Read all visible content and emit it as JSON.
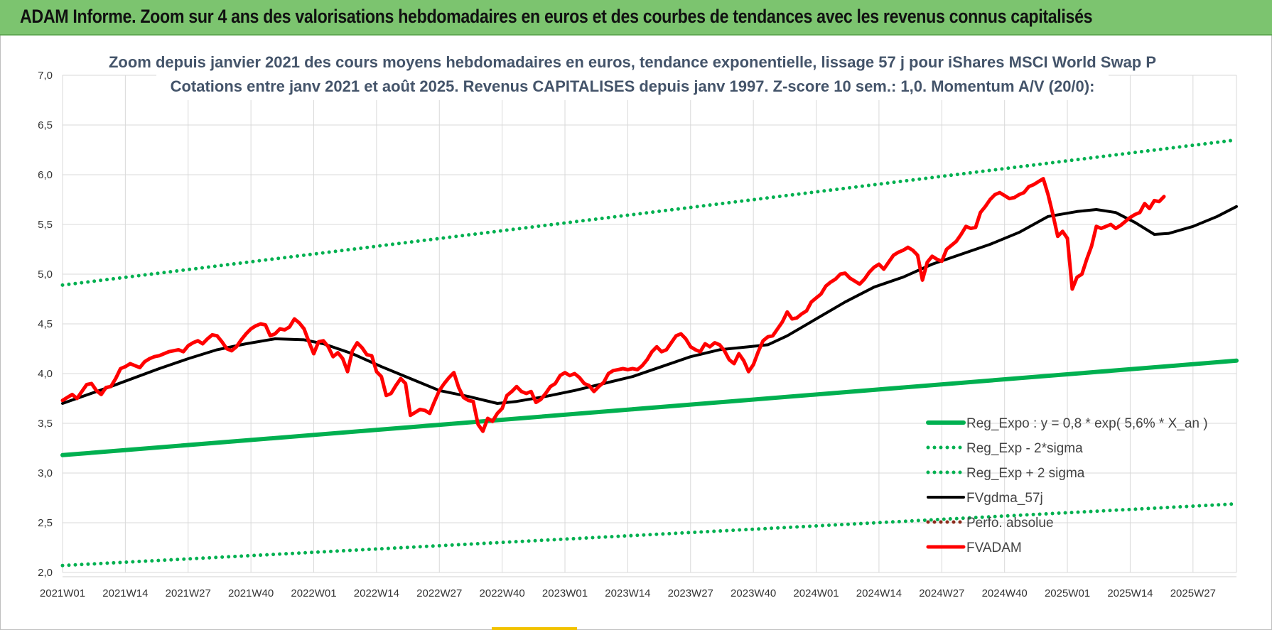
{
  "banner": {
    "title": "ADAM Informe. Zoom sur 4 ans des valorisations hebdomadaires en euros et des courbes de tendances avec les revenus connus capitalisés"
  },
  "colors": {
    "banner_bg": "#7cc46f",
    "reg_expo": "#00b050",
    "fvgdma": "#000000",
    "perfo": "#8b2a1a",
    "fvadam": "#ff0000",
    "title_text": "#44546a",
    "grid": "#d9d9d9"
  },
  "chart_data": {
    "type": "line",
    "title": "Zoom depuis janvier 2021 des cours moyens hebdomadaires en euros, tendance exponentielle, lissage 57 j pour iShares MSCI World Swap P",
    "subtitle": "Cotations entre janv 2021 et août 2025. Revenus CAPITALISES depuis janv 1997. Z-score 10 sem.: 1,0. Momentum A/V (20/0):",
    "ylim": [
      2.0,
      7.0
    ],
    "yticks": [
      "7,0",
      "6,5",
      "6,0",
      "5,5",
      "5,0",
      "4,5",
      "4,0",
      "3,5",
      "3,0",
      "2,5",
      "2,0"
    ],
    "ytick_values": [
      7.0,
      6.5,
      6.0,
      5.5,
      5.0,
      4.5,
      4.0,
      3.5,
      3.0,
      2.5,
      2.0
    ],
    "x_start": "2021W01",
    "x_end": "2025W34",
    "xticks": [
      "2021W01",
      "2021W14",
      "2021W27",
      "2021W40",
      "2022W01",
      "2022W14",
      "2022W27",
      "2022W40",
      "2023W01",
      "2023W14",
      "2023W27",
      "2023W40",
      "2024W01",
      "2024W14",
      "2024W27",
      "2024W40",
      "2025W01",
      "2025W14",
      "2025W27"
    ],
    "xtick_weeks": [
      0,
      13,
      26,
      39,
      52,
      65,
      78,
      91,
      104,
      117,
      130,
      143,
      156,
      169,
      182,
      195,
      208,
      221,
      234
    ],
    "grid": "vertical and horizontal",
    "legend_position": "bottom-right",
    "series": [
      {
        "name": "Reg_Expo : y = 0,8 * exp( 5,6% *  X_an )",
        "style": "solid-thick",
        "color": "#00b050",
        "points": [
          [
            0,
            3.18
          ],
          [
            243,
            4.13
          ]
        ]
      },
      {
        "name": "Reg_Exp - 2*sigma",
        "style": "dotted",
        "color": "#00b050",
        "points": [
          [
            0,
            2.07
          ],
          [
            243,
            2.69
          ]
        ]
      },
      {
        "name": "Reg_Exp + 2 sigma",
        "style": "dotted",
        "color": "#00b050",
        "points": [
          [
            0,
            4.89
          ],
          [
            243,
            6.35
          ]
        ]
      },
      {
        "name": "FVgdma_57j",
        "style": "solid",
        "color": "#000000",
        "points": [
          [
            0,
            3.7
          ],
          [
            10,
            3.87
          ],
          [
            20,
            4.05
          ],
          [
            26,
            4.15
          ],
          [
            32,
            4.24
          ],
          [
            38,
            4.3
          ],
          [
            44,
            4.35
          ],
          [
            50,
            4.34
          ],
          [
            54,
            4.3
          ],
          [
            60,
            4.2
          ],
          [
            66,
            4.07
          ],
          [
            72,
            3.95
          ],
          [
            78,
            3.83
          ],
          [
            84,
            3.77
          ],
          [
            90,
            3.7
          ],
          [
            94,
            3.72
          ],
          [
            100,
            3.77
          ],
          [
            106,
            3.83
          ],
          [
            112,
            3.9
          ],
          [
            118,
            3.97
          ],
          [
            124,
            4.07
          ],
          [
            130,
            4.17
          ],
          [
            136,
            4.24
          ],
          [
            142,
            4.27
          ],
          [
            146,
            4.29
          ],
          [
            150,
            4.38
          ],
          [
            156,
            4.55
          ],
          [
            162,
            4.72
          ],
          [
            168,
            4.87
          ],
          [
            174,
            4.97
          ],
          [
            180,
            5.1
          ],
          [
            186,
            5.2
          ],
          [
            192,
            5.3
          ],
          [
            198,
            5.42
          ],
          [
            204,
            5.58
          ],
          [
            210,
            5.63
          ],
          [
            214,
            5.65
          ],
          [
            218,
            5.62
          ],
          [
            222,
            5.52
          ],
          [
            226,
            5.4
          ],
          [
            229,
            5.41
          ],
          [
            234,
            5.48
          ],
          [
            239,
            5.58
          ],
          [
            243,
            5.68
          ]
        ]
      },
      {
        "name": "Perfo. absolue",
        "style": "dotted",
        "color": "#8b2a1a",
        "points": []
      },
      {
        "name": "FVADAM",
        "style": "solid-thick",
        "color": "#ff0000",
        "points": [
          [
            0,
            3.73
          ],
          [
            2,
            3.79
          ],
          [
            3,
            3.75
          ],
          [
            4,
            3.82
          ],
          [
            5,
            3.89
          ],
          [
            6,
            3.9
          ],
          [
            7,
            3.83
          ],
          [
            8,
            3.79
          ],
          [
            9,
            3.86
          ],
          [
            10,
            3.87
          ],
          [
            11,
            3.95
          ],
          [
            12,
            4.05
          ],
          [
            13,
            4.07
          ],
          [
            14,
            4.1
          ],
          [
            15,
            4.08
          ],
          [
            16,
            4.06
          ],
          [
            17,
            4.12
          ],
          [
            18,
            4.15
          ],
          [
            19,
            4.17
          ],
          [
            20,
            4.18
          ],
          [
            22,
            4.22
          ],
          [
            24,
            4.24
          ],
          [
            25,
            4.22
          ],
          [
            26,
            4.28
          ],
          [
            27,
            4.31
          ],
          [
            28,
            4.33
          ],
          [
            29,
            4.3
          ],
          [
            30,
            4.35
          ],
          [
            31,
            4.39
          ],
          [
            32,
            4.38
          ],
          [
            33,
            4.32
          ],
          [
            34,
            4.25
          ],
          [
            35,
            4.23
          ],
          [
            36,
            4.27
          ],
          [
            37,
            4.34
          ],
          [
            38,
            4.4
          ],
          [
            39,
            4.45
          ],
          [
            40,
            4.48
          ],
          [
            41,
            4.5
          ],
          [
            42,
            4.49
          ],
          [
            43,
            4.38
          ],
          [
            44,
            4.4
          ],
          [
            45,
            4.45
          ],
          [
            46,
            4.44
          ],
          [
            47,
            4.47
          ],
          [
            48,
            4.55
          ],
          [
            49,
            4.51
          ],
          [
            50,
            4.45
          ],
          [
            51,
            4.32
          ],
          [
            52,
            4.2
          ],
          [
            53,
            4.32
          ],
          [
            54,
            4.33
          ],
          [
            55,
            4.27
          ],
          [
            56,
            4.17
          ],
          [
            57,
            4.21
          ],
          [
            58,
            4.15
          ],
          [
            59,
            4.02
          ],
          [
            60,
            4.23
          ],
          [
            61,
            4.31
          ],
          [
            62,
            4.26
          ],
          [
            63,
            4.19
          ],
          [
            64,
            4.18
          ],
          [
            65,
            4.02
          ],
          [
            66,
            3.97
          ],
          [
            67,
            3.78
          ],
          [
            68,
            3.8
          ],
          [
            69,
            3.88
          ],
          [
            70,
            3.95
          ],
          [
            71,
            3.9
          ],
          [
            72,
            3.58
          ],
          [
            73,
            3.61
          ],
          [
            74,
            3.64
          ],
          [
            75,
            3.63
          ],
          [
            76,
            3.6
          ],
          [
            77,
            3.72
          ],
          [
            78,
            3.83
          ],
          [
            79,
            3.9
          ],
          [
            80,
            3.96
          ],
          [
            81,
            4.01
          ],
          [
            82,
            3.86
          ],
          [
            83,
            3.76
          ],
          [
            84,
            3.73
          ],
          [
            85,
            3.72
          ],
          [
            86,
            3.49
          ],
          [
            87,
            3.42
          ],
          [
            88,
            3.55
          ],
          [
            89,
            3.52
          ],
          [
            90,
            3.6
          ],
          [
            91,
            3.65
          ],
          [
            92,
            3.78
          ],
          [
            93,
            3.82
          ],
          [
            94,
            3.87
          ],
          [
            95,
            3.82
          ],
          [
            96,
            3.8
          ],
          [
            97,
            3.82
          ],
          [
            98,
            3.71
          ],
          [
            99,
            3.74
          ],
          [
            100,
            3.8
          ],
          [
            101,
            3.87
          ],
          [
            102,
            3.9
          ],
          [
            103,
            3.98
          ],
          [
            104,
            4.01
          ],
          [
            105,
            3.98
          ],
          [
            106,
            4.0
          ],
          [
            107,
            3.96
          ],
          [
            108,
            3.9
          ],
          [
            109,
            3.88
          ],
          [
            110,
            3.82
          ],
          [
            111,
            3.87
          ],
          [
            112,
            3.91
          ],
          [
            113,
            4.0
          ],
          [
            114,
            4.03
          ],
          [
            115,
            4.04
          ],
          [
            116,
            4.05
          ],
          [
            117,
            4.04
          ],
          [
            118,
            4.05
          ],
          [
            119,
            4.04
          ],
          [
            120,
            4.08
          ],
          [
            121,
            4.14
          ],
          [
            122,
            4.22
          ],
          [
            123,
            4.27
          ],
          [
            124,
            4.22
          ],
          [
            125,
            4.24
          ],
          [
            126,
            4.31
          ],
          [
            127,
            4.38
          ],
          [
            128,
            4.4
          ],
          [
            129,
            4.35
          ],
          [
            130,
            4.27
          ],
          [
            131,
            4.24
          ],
          [
            132,
            4.22
          ],
          [
            133,
            4.3
          ],
          [
            134,
            4.27
          ],
          [
            135,
            4.31
          ],
          [
            136,
            4.29
          ],
          [
            137,
            4.23
          ],
          [
            138,
            4.14
          ],
          [
            139,
            4.1
          ],
          [
            140,
            4.2
          ],
          [
            141,
            4.13
          ],
          [
            142,
            4.02
          ],
          [
            143,
            4.09
          ],
          [
            144,
            4.22
          ],
          [
            145,
            4.33
          ],
          [
            146,
            4.37
          ],
          [
            147,
            4.38
          ],
          [
            148,
            4.45
          ],
          [
            149,
            4.52
          ],
          [
            150,
            4.62
          ],
          [
            151,
            4.55
          ],
          [
            152,
            4.56
          ],
          [
            153,
            4.6
          ],
          [
            154,
            4.63
          ],
          [
            155,
            4.72
          ],
          [
            156,
            4.76
          ],
          [
            157,
            4.8
          ],
          [
            158,
            4.88
          ],
          [
            159,
            4.92
          ],
          [
            160,
            4.95
          ],
          [
            161,
            5.0
          ],
          [
            162,
            5.01
          ],
          [
            163,
            4.96
          ],
          [
            164,
            4.93
          ],
          [
            165,
            4.9
          ],
          [
            166,
            4.95
          ],
          [
            167,
            5.02
          ],
          [
            168,
            5.07
          ],
          [
            169,
            5.1
          ],
          [
            170,
            5.05
          ],
          [
            171,
            5.12
          ],
          [
            172,
            5.19
          ],
          [
            173,
            5.22
          ],
          [
            174,
            5.24
          ],
          [
            175,
            5.27
          ],
          [
            176,
            5.24
          ],
          [
            177,
            5.19
          ],
          [
            178,
            4.94
          ],
          [
            179,
            5.12
          ],
          [
            180,
            5.18
          ],
          [
            181,
            5.15
          ],
          [
            182,
            5.13
          ],
          [
            183,
            5.25
          ],
          [
            184,
            5.29
          ],
          [
            185,
            5.33
          ],
          [
            186,
            5.4
          ],
          [
            187,
            5.48
          ],
          [
            188,
            5.46
          ],
          [
            189,
            5.47
          ],
          [
            190,
            5.62
          ],
          [
            191,
            5.68
          ],
          [
            192,
            5.75
          ],
          [
            193,
            5.8
          ],
          [
            194,
            5.82
          ],
          [
            195,
            5.79
          ],
          [
            196,
            5.76
          ],
          [
            197,
            5.77
          ],
          [
            198,
            5.8
          ],
          [
            199,
            5.82
          ],
          [
            200,
            5.88
          ],
          [
            201,
            5.9
          ],
          [
            202,
            5.93
          ],
          [
            203,
            5.96
          ],
          [
            204,
            5.8
          ],
          [
            205,
            5.6
          ],
          [
            206,
            5.38
          ],
          [
            207,
            5.43
          ],
          [
            208,
            5.36
          ],
          [
            209,
            4.85
          ],
          [
            210,
            4.97
          ],
          [
            211,
            5.0
          ],
          [
            212,
            5.15
          ],
          [
            213,
            5.28
          ],
          [
            214,
            5.48
          ],
          [
            215,
            5.46
          ],
          [
            216,
            5.48
          ],
          [
            217,
            5.5
          ],
          [
            218,
            5.46
          ],
          [
            219,
            5.49
          ],
          [
            220,
            5.53
          ],
          [
            221,
            5.57
          ],
          [
            222,
            5.6
          ],
          [
            223,
            5.62
          ],
          [
            224,
            5.71
          ],
          [
            225,
            5.66
          ],
          [
            226,
            5.74
          ],
          [
            227,
            5.73
          ],
          [
            228,
            5.78
          ]
        ]
      }
    ]
  }
}
